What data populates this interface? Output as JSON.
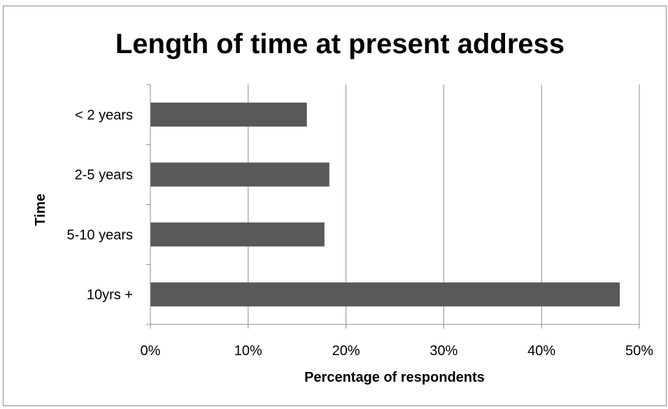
{
  "chart_data": {
    "type": "bar",
    "orientation": "horizontal",
    "title": "Length of time at present address",
    "xlabel": "Percentage of respondents",
    "ylabel": "Time",
    "categories": [
      "< 2 years",
      "2-5 years",
      "5-10 years",
      "10yrs +"
    ],
    "values": [
      16,
      18.3,
      17.8,
      48
    ],
    "value_unit": "%",
    "xlim": [
      0,
      50
    ],
    "x_ticks": [
      0,
      10,
      20,
      30,
      40,
      50
    ],
    "x_tick_labels": [
      "0%",
      "10%",
      "20%",
      "30%",
      "40%",
      "50%"
    ],
    "grid": "vertical major gridlines",
    "legend": "none",
    "bar_color": "#595959",
    "grid_color": "#8c8c8c",
    "axis_color": "#8c8c8c"
  }
}
